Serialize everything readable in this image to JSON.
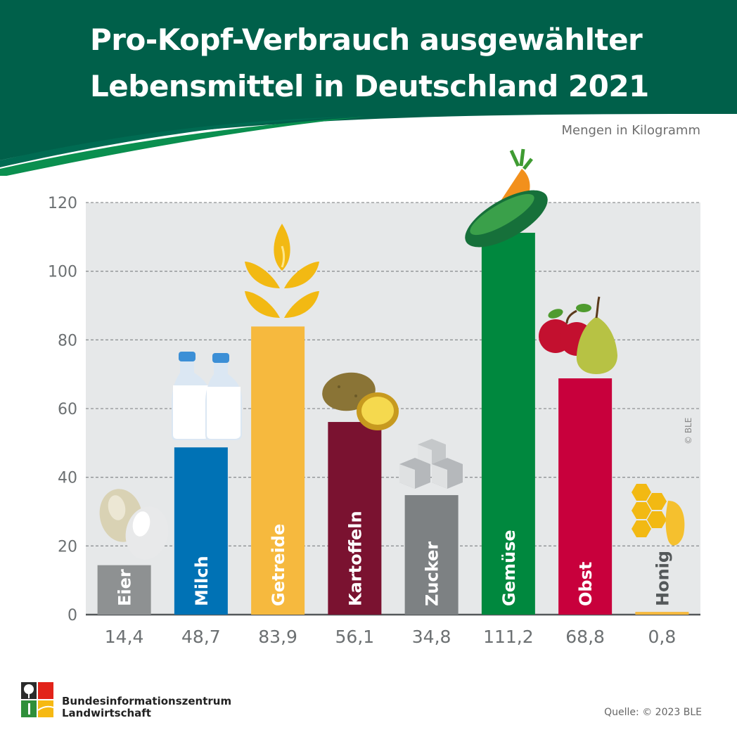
{
  "header": {
    "title_line_1": "Pro-Kopf-Verbrauch ausgewählter",
    "title_line_2": "Lebensmittel in Deutschland 2021",
    "unit": "Mengen in Kilogramm"
  },
  "colors": {
    "header_green": "#00604a",
    "plot_background": "#e6e8e9"
  },
  "chart_data": {
    "type": "bar",
    "title": "Pro-Kopf-Verbrauch ausgewählter Lebensmittel in Deutschland 2021",
    "ylabel": "Mengen in Kilogramm",
    "ylim": [
      0,
      120
    ],
    "yticks": [
      0,
      20,
      40,
      60,
      80,
      100,
      120
    ],
    "grid": true,
    "categories": [
      "Eier",
      "Milch",
      "Getreide",
      "Kartoffeln",
      "Zucker",
      "Gemüse",
      "Obst",
      "Honig"
    ],
    "values": [
      14.4,
      48.7,
      83.9,
      56.1,
      34.8,
      111.2,
      68.8,
      0.8
    ],
    "value_labels": [
      "14,4",
      "48,7",
      "83,9",
      "56,1",
      "34,8",
      "111,2",
      "68,8",
      "0,8"
    ],
    "bar_colors": [
      "#8e9192",
      "#0072b5",
      "#f6b93e",
      "#7a1230",
      "#7d8183",
      "#00883e",
      "#c8003c",
      "#f6b93e"
    ],
    "label_colors": [
      "#ffffff",
      "#ffffff",
      "#ffffff",
      "#ffffff",
      "#ffffff",
      "#ffffff",
      "#ffffff",
      "#54585a"
    ],
    "icons": [
      "eggs-icon",
      "milk-bottles-icon",
      "wheat-icon",
      "potatoes-icon",
      "sugar-cubes-icon",
      "vegetables-icon",
      "fruit-icon",
      "honeycomb-icon"
    ]
  },
  "footer": {
    "org_line_1": "Bundesinformationszentrum",
    "org_line_2": "Landwirtschaft",
    "source": "Quelle: © 2023 BLE",
    "copyright": "© BLE"
  }
}
